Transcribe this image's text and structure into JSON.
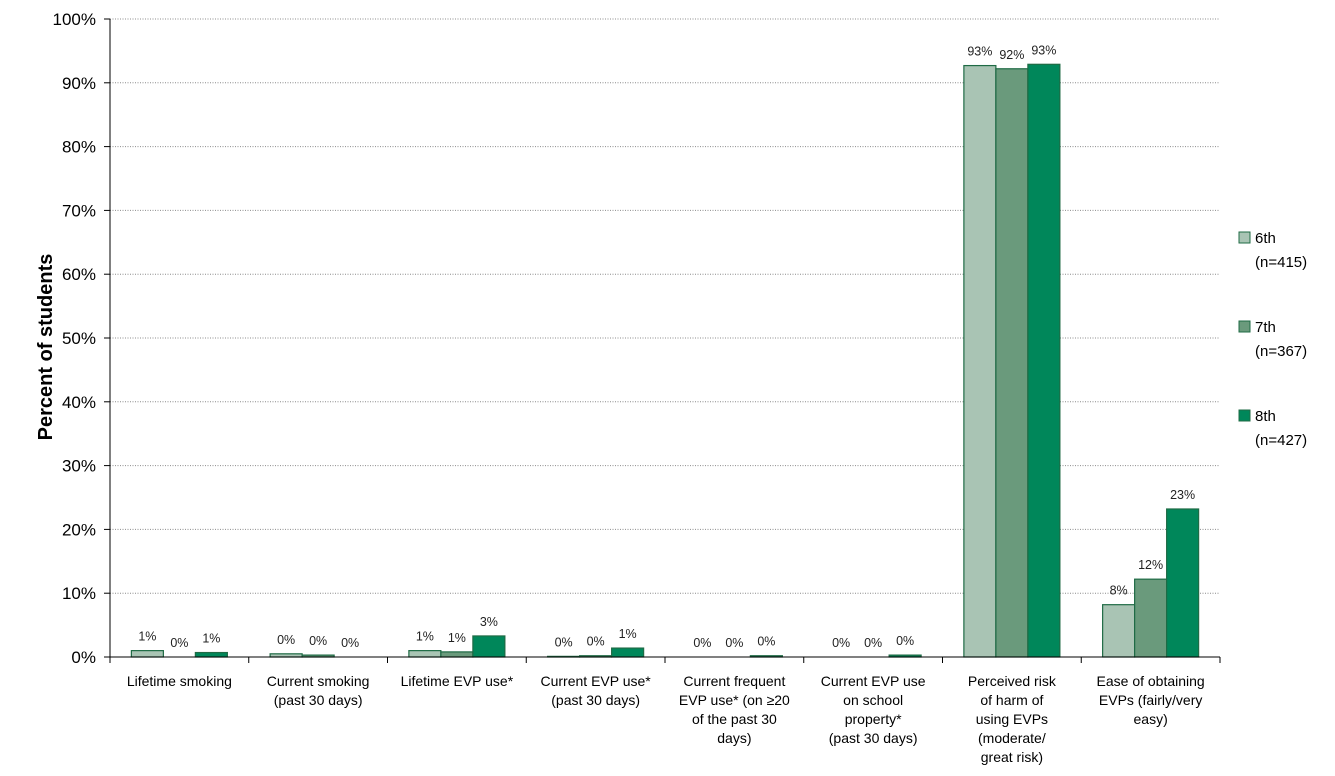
{
  "chart_data": {
    "type": "bar",
    "title": "",
    "xlabel": "",
    "ylabel": "Percent of students",
    "ylim": [
      0,
      100
    ],
    "yticks": [
      "0%",
      "10%",
      "20%",
      "30%",
      "40%",
      "50%",
      "60%",
      "70%",
      "80%",
      "90%",
      "100%"
    ],
    "grid": "horizontal dotted",
    "legend_position": "right",
    "categories": [
      [
        "Lifetime smoking"
      ],
      [
        "Current smoking",
        "(past 30 days)"
      ],
      [
        "Lifetime EVP use*"
      ],
      [
        "Current EVP use*",
        "(past 30 days)"
      ],
      [
        "Current frequent",
        "EVP use* (on ≥20",
        "of the past 30",
        "days)"
      ],
      [
        "Current EVP use",
        "on school",
        "property*",
        "(past 30 days)"
      ],
      [
        "Perceived risk",
        "of harm of",
        "using EVPs",
        "(moderate/",
        "great risk)"
      ],
      [
        "Ease of obtaining",
        "EVPs (fairly/very",
        "easy)"
      ]
    ],
    "series": [
      {
        "name_lines": [
          "6th",
          "(n=415)"
        ],
        "color": "#a9c4b4",
        "values": [
          1.0,
          0.5,
          1.0,
          0.1,
          0.0,
          0.0,
          92.7,
          8.2
        ],
        "labels": [
          "1%",
          "0%",
          "1%",
          "0%",
          "0%",
          "0%",
          "93%",
          "8%"
        ]
      },
      {
        "name_lines": [
          "7th",
          "(n=367)"
        ],
        "color": "#6a9a7c",
        "values": [
          0.0,
          0.3,
          0.8,
          0.2,
          0.0,
          0.0,
          92.2,
          12.2
        ],
        "labels": [
          "0%",
          "0%",
          "1%",
          "0%",
          "0%",
          "0%",
          "92%",
          "12%"
        ]
      },
      {
        "name_lines": [
          "8th",
          "(n=427)"
        ],
        "color": "#00875a",
        "values": [
          0.7,
          0.0,
          3.3,
          1.4,
          0.2,
          0.3,
          92.9,
          23.2
        ],
        "labels": [
          "1%",
          "0%",
          "3%",
          "1%",
          "0%",
          "0%",
          "93%",
          "23%"
        ]
      }
    ],
    "bar_border_color": "#1f6b45"
  }
}
